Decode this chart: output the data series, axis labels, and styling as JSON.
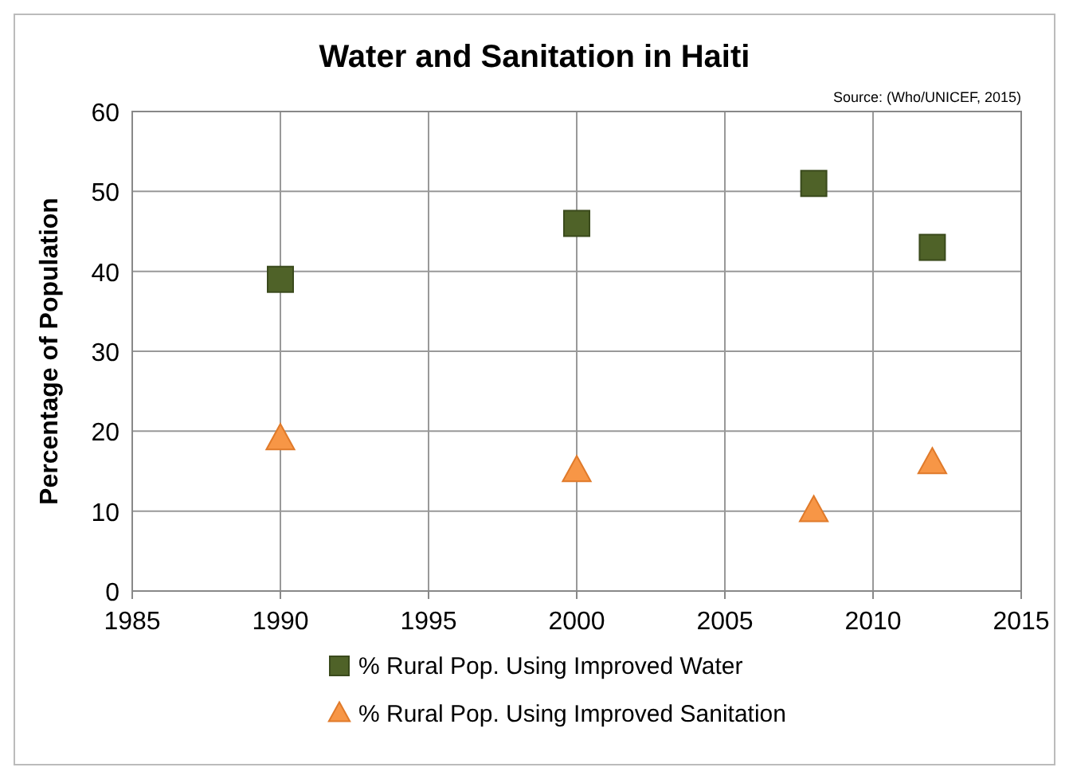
{
  "chart_data": {
    "type": "scatter",
    "title": "Water and Sanitation in Haiti",
    "ylabel": "Percentage of Population",
    "annotations": [
      "Source: (Who/UNICEF, 2015)"
    ],
    "x": [
      1990,
      2000,
      2008,
      2012
    ],
    "series": [
      {
        "name": "% Rural Pop. Using Improved Water",
        "color": "#4f6228",
        "values": [
          39,
          46,
          51,
          43
        ],
        "marker": "square"
      },
      {
        "name": "% Rural Pop. Using Improved Sanitation",
        "color": "#f79646",
        "values": [
          19,
          15,
          10,
          16
        ],
        "marker": "triangle"
      }
    ],
    "xlim": [
      1985,
      2015
    ],
    "xticks": [
      1985,
      1990,
      1995,
      2000,
      2005,
      2010,
      2015
    ],
    "ylim": [
      0,
      60
    ],
    "yticks": [
      0,
      10,
      20,
      30,
      40,
      50,
      60
    ],
    "grid": true,
    "legend": "bottom"
  }
}
